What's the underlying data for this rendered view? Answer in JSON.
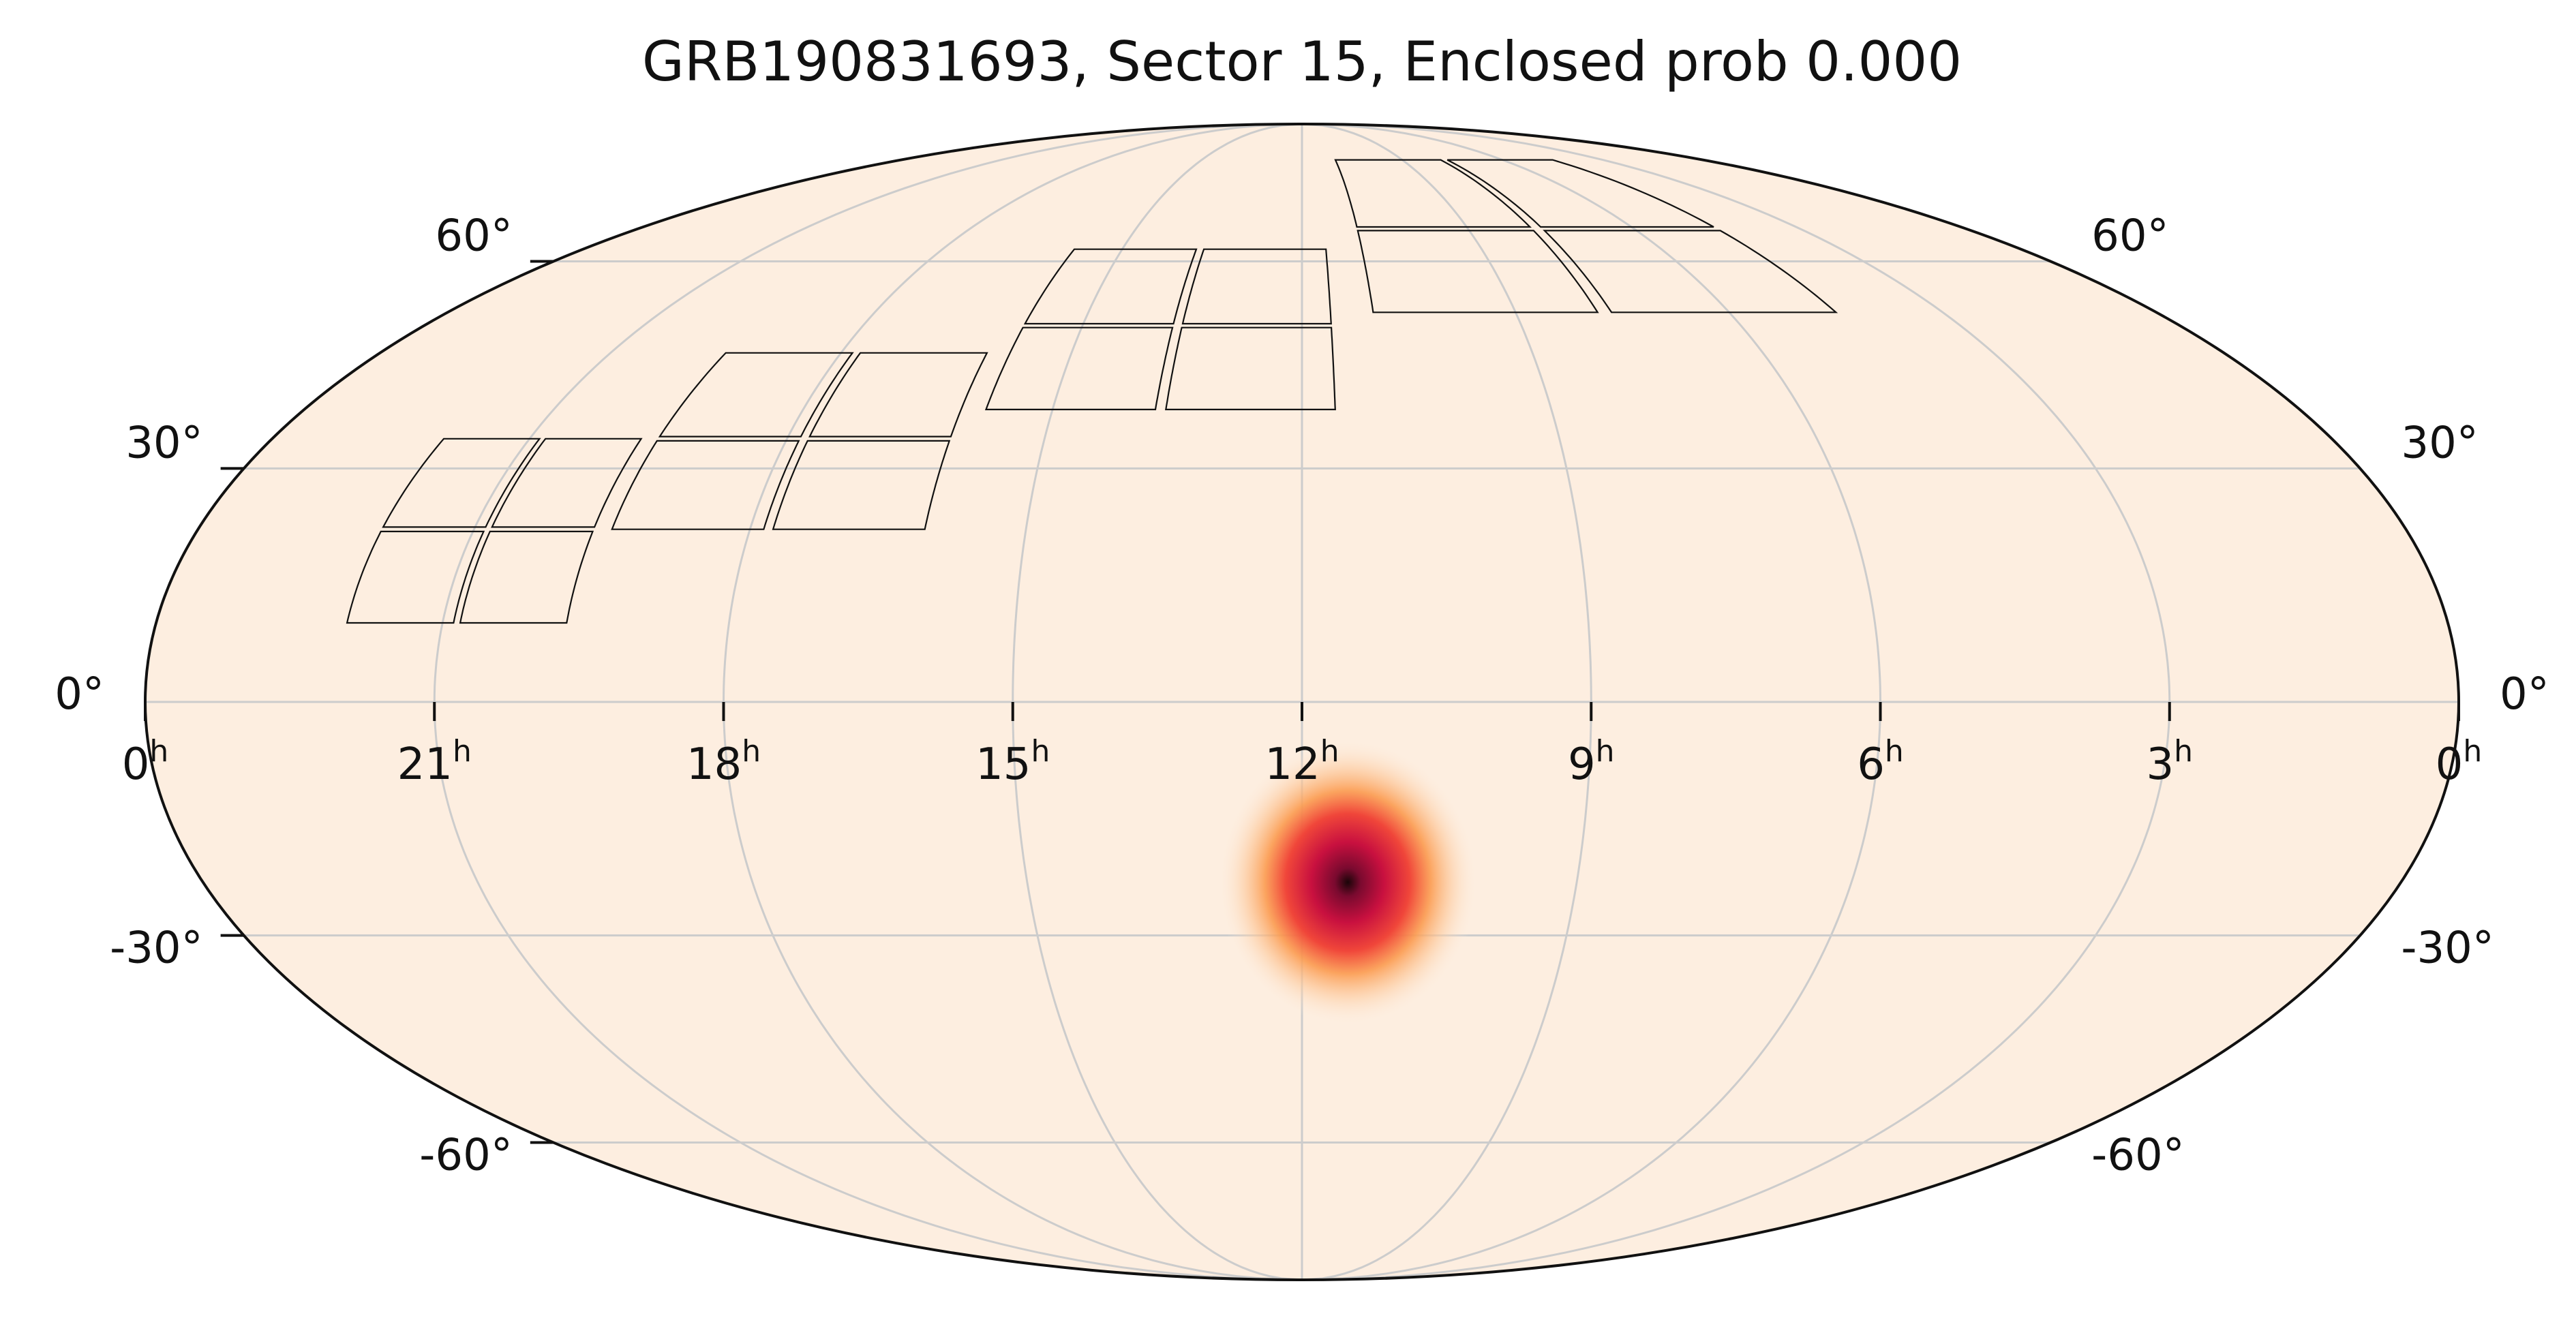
{
  "title": "GRB190831693, Sector 15, Enclosed prob 0.000",
  "projection": "mollweide",
  "ra_axis_direction": "increasing-left",
  "background_color": "#fdeee0",
  "grid_color": "#cccccc",
  "outline_color": "#111111",
  "footprint_color": "#111111",
  "ra_ticks": [
    {
      "hours": 24,
      "label": "0",
      "sup": "h"
    },
    {
      "hours": 21,
      "label": "21",
      "sup": "h"
    },
    {
      "hours": 18,
      "label": "18",
      "sup": "h"
    },
    {
      "hours": 15,
      "label": "15",
      "sup": "h"
    },
    {
      "hours": 12,
      "label": "12",
      "sup": "h"
    },
    {
      "hours": 9,
      "label": "9",
      "sup": "h"
    },
    {
      "hours": 6,
      "label": "6",
      "sup": "h"
    },
    {
      "hours": 3,
      "label": "3",
      "sup": "h"
    },
    {
      "hours": 0,
      "label": "0",
      "sup": "h"
    }
  ],
  "dec_ticks": [
    {
      "dec": 60,
      "label": "60°"
    },
    {
      "dec": 30,
      "label": "30°"
    },
    {
      "dec": 0,
      "label": "0°"
    },
    {
      "dec": -30,
      "label": "-30°"
    },
    {
      "dec": -60,
      "label": "-60°"
    }
  ],
  "localization": {
    "ra_hours": 11.5,
    "dec": -23,
    "colormap": [
      "#fdeee0",
      "#fdc89a",
      "#fb9b50",
      "#f0463a",
      "#c8103f",
      "#7a0a2f",
      "#1a0508"
    ]
  },
  "sector_footprint": {
    "sector": 15,
    "cameras": [
      {
        "name": "camera-1",
        "ra_range": [
          19.7,
          22.0
        ],
        "dec_range": [
          10,
          34
        ]
      },
      {
        "name": "camera-2",
        "ra_range": [
          16.1,
          19.5
        ],
        "dec_range": [
          22,
          46
        ]
      },
      {
        "name": "camera-3",
        "ra_range": [
          11.6,
          15.8
        ],
        "dec_range": [
          38,
          62
        ]
      },
      {
        "name": "camera-4",
        "ra_range": [
          4.5,
          11.0
        ],
        "dec_range": [
          52,
          79
        ]
      }
    ]
  }
}
